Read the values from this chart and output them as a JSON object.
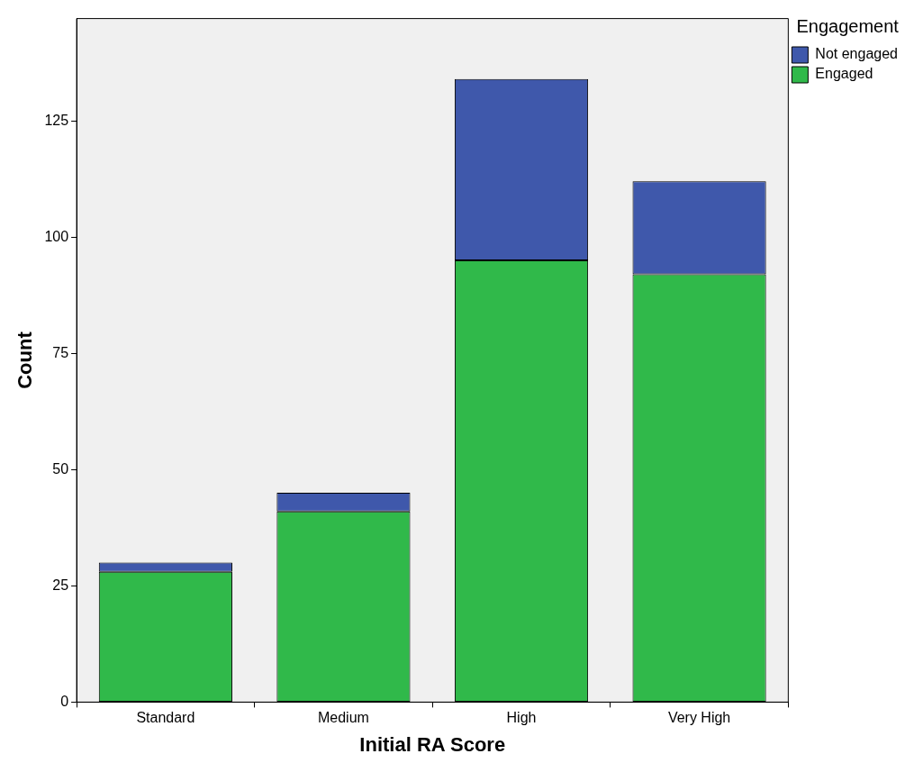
{
  "chart_data": {
    "type": "bar",
    "xlabel": "Initial RA Score",
    "ylabel": "Count",
    "legend_title": "Engagement",
    "categories": [
      "Standard",
      "Medium",
      "High",
      "Very High"
    ],
    "series": [
      {
        "name": "Engaged",
        "color": "#30b94a",
        "values": [
          28,
          41,
          95,
          92
        ]
      },
      {
        "name": "Not engaged",
        "color": "#3f58ab",
        "values": [
          2,
          4,
          39,
          20
        ]
      }
    ],
    "stacked": true,
    "ylim": [
      0,
      147
    ],
    "yticks": [
      0,
      25,
      50,
      75,
      100,
      125
    ],
    "grid": false,
    "legend": "top right"
  }
}
